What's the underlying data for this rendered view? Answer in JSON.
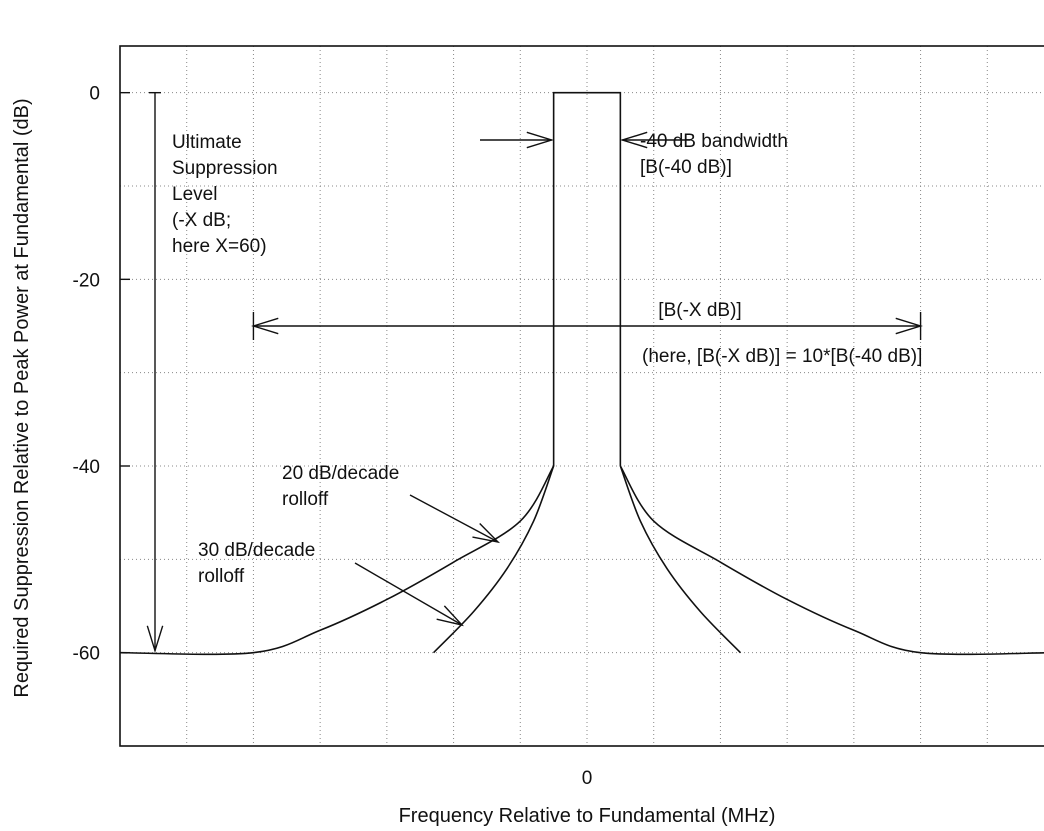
{
  "chart_data": {
    "type": "line",
    "xlabel": "Frequency Relative to Fundamental (MHz)",
    "ylabel": "Required Suppression Relative to Peak Power at Fundamental (dB)",
    "ylim": [
      -70,
      5
    ],
    "xlim": [
      -7,
      7
    ],
    "x_ticks": [
      {
        "value": 0,
        "label": "0"
      }
    ],
    "y_ticks": [
      {
        "value": 0,
        "label": "0"
      },
      {
        "value": -20,
        "label": "-20"
      },
      {
        "value": -40,
        "label": "-40"
      },
      {
        "value": -60,
        "label": "-60"
      }
    ],
    "grid": true,
    "x_grid": [
      -6,
      -5,
      -4,
      -3,
      -2,
      -1,
      0,
      1,
      2,
      3,
      4,
      5,
      6
    ],
    "y_grid": [
      0,
      -10,
      -20,
      -30,
      -40,
      -50,
      -60
    ],
    "series": [
      {
        "points": [
          [
            -0.5,
            -40
          ],
          [
            -0.5,
            0
          ],
          [
            0.5,
            0
          ],
          [
            0.5,
            -40
          ]
        ]
      },
      {
        "points": [
          [
            -7,
            -60
          ],
          [
            -5,
            -60
          ],
          [
            -4,
            -57.6
          ],
          [
            -3,
            -54.3
          ],
          [
            -2,
            -50.3
          ],
          [
            -1,
            -45.9
          ],
          [
            -0.5,
            -40
          ]
        ]
      },
      {
        "points": [
          [
            0.5,
            -40
          ],
          [
            1,
            -45.9
          ],
          [
            2,
            -50.3
          ],
          [
            3,
            -54.3
          ],
          [
            4,
            -57.6
          ],
          [
            5,
            -60
          ],
          [
            7,
            -60
          ]
        ]
      },
      {
        "points": [
          [
            -0.5,
            -40
          ],
          [
            -0.8,
            -45.9
          ],
          [
            -1.2,
            -51.0
          ],
          [
            -1.7,
            -55.6
          ],
          [
            -2.3,
            -60
          ]
        ]
      },
      {
        "points": [
          [
            0.5,
            -40
          ],
          [
            0.8,
            -45.9
          ],
          [
            1.2,
            -51.0
          ],
          [
            1.7,
            -55.6
          ],
          [
            2.3,
            -60
          ]
        ]
      }
    ],
    "annotations": {
      "suppression_lines": [
        "Ultimate",
        "Suppression",
        "Level",
        "(-X dB;",
        "here X=60)"
      ],
      "bw40_lines": [
        "-40 dB bandwidth",
        "[B(-40 dB)]"
      ],
      "bwx_label": "[B(-X dB)]",
      "bwx_note": "(here, [B(-X dB)] = 10*[B(-40 dB)]",
      "rolloff20_lines": [
        "20 dB/decade",
        "rolloff"
      ],
      "rolloff30_lines": [
        "30 dB/decade",
        "rolloff"
      ]
    }
  }
}
